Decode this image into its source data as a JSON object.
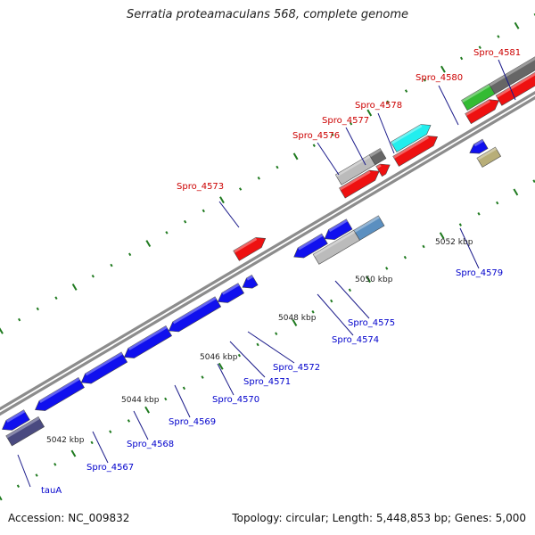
{
  "title": "Serratia proteamaculans 568, complete genome",
  "footer": {
    "accession": "Accession: NC_009832",
    "summary": "Topology: circular; Length: 5,448,853 bp; Genes: 5,000"
  },
  "colors": {
    "backbone": "#8c8c8c",
    "tick": "#1f7a1f",
    "label_forward": "#cc0000",
    "label_reverse": "#0000cc",
    "red": "#ee1111",
    "blue": "#1010ee",
    "grey": "#bbbbbb",
    "darkgrey": "#666666",
    "green": "#33bb33",
    "cyan": "#22eeee",
    "steel": "#5b8fc0",
    "olive": "#b8ae78",
    "navy": "#4a4a80"
  },
  "kbp_labels": [
    "5042 kbp",
    "5044 kbp",
    "5046 kbp",
    "5048 kbp",
    "5050 kbp",
    "5052 kbp"
  ],
  "forward_labels": [
    "Spro_4573",
    "Spro_4576",
    "Spro_4577",
    "Spro_4578",
    "Spro_4580",
    "Spro_4581"
  ],
  "reverse_labels": [
    "tauA",
    "Spro_4567",
    "Spro_4568",
    "Spro_4569",
    "Spro_4570",
    "Spro_4571",
    "Spro_4572",
    "Spro_4574",
    "Spro_4575",
    "Spro_4579"
  ]
}
